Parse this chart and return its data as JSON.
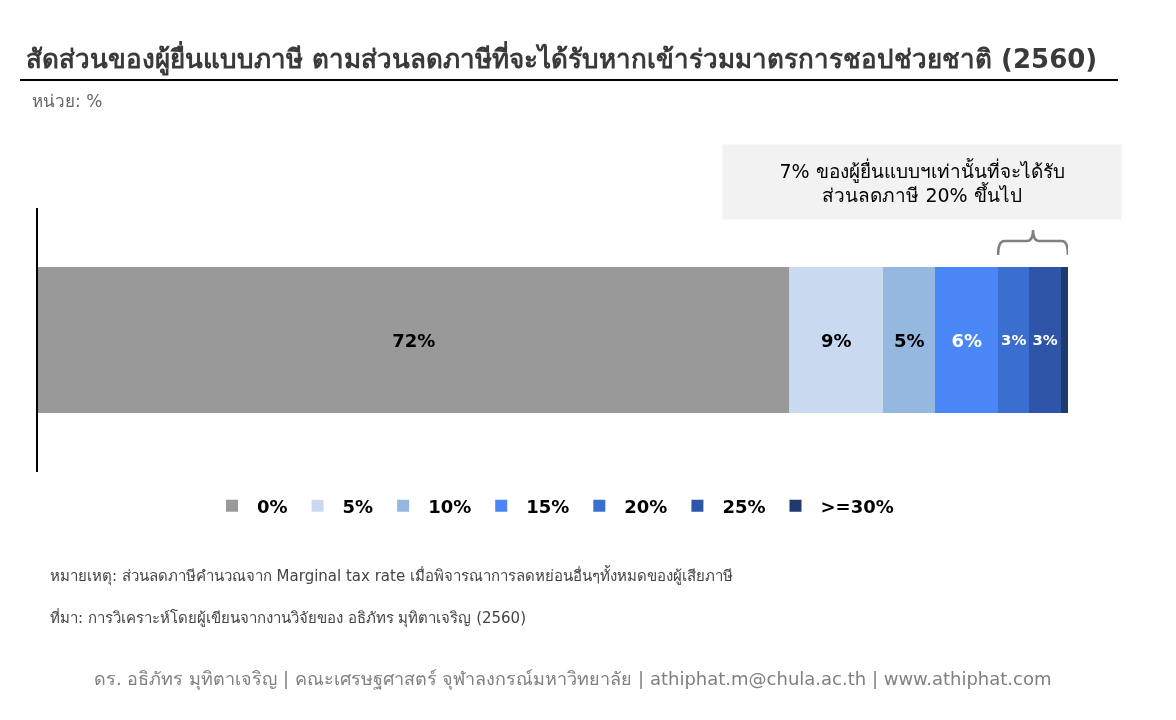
{
  "chart_data": {
    "type": "bar",
    "orientation": "horizontal",
    "stacked": true,
    "title": "สัดส่วนของผู้ยื่นแบบภาษี ตามส่วนลดภาษีที่จะได้รับหากเข้าร่วมมาตรการชอปช่วยชาติ (2560)",
    "subtitle": "หน่วย: %",
    "categories": [
      null
    ],
    "tick_labels": false,
    "legend": "bottom",
    "series": [
      {
        "name": "0%",
        "color": "#999999",
        "values": [
          72
        ],
        "value_labels": [
          "72%"
        ]
      },
      {
        "name": "5%",
        "color": "#c9daf0",
        "values": [
          9
        ],
        "value_labels": [
          "9%"
        ]
      },
      {
        "name": "10%",
        "color": "#95b8e0",
        "values": [
          5
        ],
        "value_labels": [
          "5%"
        ]
      },
      {
        "name": "15%",
        "color": "#4a86f5",
        "values": [
          6
        ],
        "value_labels": [
          "6%"
        ]
      },
      {
        "name": "20%",
        "color": "#3a6fcf",
        "values": [
          3
        ],
        "value_labels": [
          "3%"
        ]
      },
      {
        "name": "25%",
        "color": "#2f55a8",
        "values": [
          3
        ],
        "value_labels": [
          "3%"
        ]
      },
      {
        "name": ">=30%",
        "color": "#1f3a6e",
        "values": [
          0.7
        ],
        "value_labels": [
          null
        ]
      }
    ],
    "annotations": [
      "7% ของผู้ยื่นแบบฯเท่านั้นที่จะได้รับ\nส่วนลดภาษี 20% ขึ้นไป",
      "หมายเหตุ: ส่วนลดภาษีคำนวณจาก Marginal tax rate เมื่อพิจารณาการลดหย่อนอื่นๆทั้งหมดของผู้เสียภาษี",
      "ที่มา: การวิเคราะห์โดยผู้เขียนจากงานวิจัยของ อธิภัทร มุทิตาเจริญ (2560)",
      "ดร. อธิภัทร มุทิตาเจริญ | คณะเศรษฐศาสตร์ จุฬาลงกรณ์มหาวิทยาลัย | athiphat.m@chula.ac.th | www.athiphat.com"
    ]
  }
}
